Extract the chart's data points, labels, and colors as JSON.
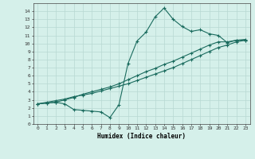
{
  "xlabel": "Humidex (Indice chaleur)",
  "ylabel": "",
  "xlim": [
    -0.5,
    23.5
  ],
  "ylim": [
    0,
    15
  ],
  "xticks": [
    0,
    1,
    2,
    3,
    4,
    5,
    6,
    7,
    8,
    9,
    10,
    11,
    12,
    13,
    14,
    15,
    16,
    17,
    18,
    19,
    20,
    21,
    22,
    23
  ],
  "yticks": [
    0,
    1,
    2,
    3,
    4,
    5,
    6,
    7,
    8,
    9,
    10,
    11,
    12,
    13,
    14
  ],
  "bg_color": "#d5f0ea",
  "line_color": "#1a6b5e",
  "grid_color": "#b8d8d2",
  "line1_x": [
    0,
    1,
    2,
    3,
    4,
    5,
    6,
    7,
    8,
    9,
    10,
    11,
    12,
    13,
    14,
    15,
    16,
    17,
    18,
    19,
    20,
    21,
    22,
    23
  ],
  "line1_y": [
    2.5,
    2.7,
    2.9,
    3.1,
    3.4,
    3.6,
    3.8,
    4.1,
    4.4,
    4.7,
    5.0,
    5.4,
    5.8,
    6.2,
    6.6,
    7.0,
    7.5,
    8.0,
    8.5,
    9.0,
    9.5,
    9.8,
    10.2,
    10.4
  ],
  "line2_x": [
    0,
    1,
    2,
    3,
    4,
    5,
    6,
    7,
    8,
    9,
    10,
    11,
    12,
    13,
    14,
    15,
    16,
    17,
    18,
    19,
    20,
    21,
    22,
    23
  ],
  "line2_y": [
    2.5,
    2.6,
    2.7,
    2.5,
    1.8,
    1.7,
    1.6,
    1.5,
    0.8,
    2.4,
    7.5,
    10.3,
    11.4,
    13.3,
    14.4,
    13.0,
    12.1,
    11.5,
    11.7,
    11.2,
    11.0,
    10.1,
    10.4,
    10.5
  ],
  "line3_x": [
    0,
    1,
    2,
    3,
    4,
    5,
    6,
    7,
    8,
    9,
    10,
    11,
    12,
    13,
    14,
    15,
    16,
    17,
    18,
    19,
    20,
    21,
    22,
    23
  ],
  "line3_y": [
    2.5,
    2.6,
    2.7,
    3.0,
    3.3,
    3.7,
    4.0,
    4.3,
    4.6,
    5.0,
    5.5,
    6.0,
    6.5,
    6.9,
    7.4,
    7.8,
    8.3,
    8.8,
    9.3,
    9.8,
    10.2,
    10.2,
    10.4,
    10.4
  ]
}
